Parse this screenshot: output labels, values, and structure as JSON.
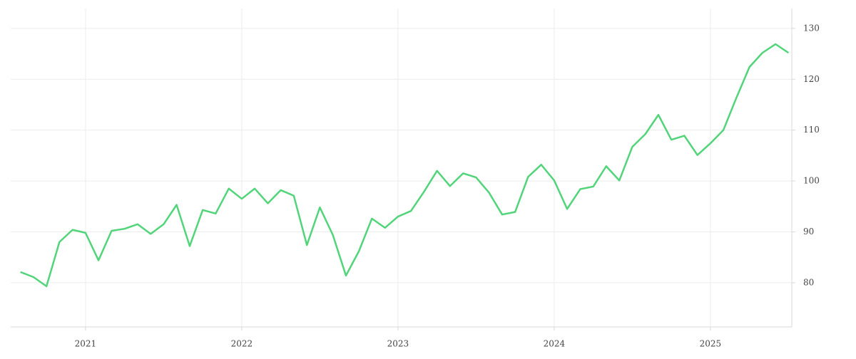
{
  "chart_data": {
    "type": "line",
    "x": [
      2020.583,
      2020.667,
      2020.75,
      2020.833,
      2020.917,
      2021,
      2021.083,
      2021.167,
      2021.25,
      2021.333,
      2021.417,
      2021.5,
      2021.583,
      2021.667,
      2021.75,
      2021.833,
      2021.917,
      2022,
      2022.083,
      2022.167,
      2022.25,
      2022.333,
      2022.417,
      2022.5,
      2022.583,
      2022.667,
      2022.75,
      2022.833,
      2022.917,
      2023,
      2023.083,
      2023.167,
      2023.25,
      2023.333,
      2023.417,
      2023.5,
      2023.583,
      2023.667,
      2023.75,
      2023.833,
      2023.917,
      2024,
      2024.083,
      2024.167,
      2024.25,
      2024.333,
      2024.417,
      2024.5,
      2024.583,
      2024.667,
      2024.75,
      2024.833,
      2024.917,
      2025,
      2025.083,
      2025.167,
      2025.25,
      2025.333,
      2025.417,
      2025.5
    ],
    "series": [
      {
        "color": "#52d47a",
        "values": [
          82.1,
          81.1,
          79.3,
          88.0,
          90.4,
          89.8,
          84.4,
          90.2,
          90.6,
          91.5,
          89.6,
          91.5,
          95.3,
          87.2,
          94.3,
          93.6,
          98.5,
          96.5,
          98.5,
          95.6,
          98.2,
          97.1,
          87.4,
          94.8,
          89.4,
          81.4,
          86.2,
          92.6,
          90.8,
          93.0,
          94.1,
          97.9,
          102.0,
          99.0,
          101.5,
          100.7,
          97.7,
          93.4,
          93.9,
          100.8,
          103.2,
          100.1,
          94.5,
          98.4,
          98.9,
          102.9,
          100.1,
          106.7,
          109.2,
          113.0,
          108.1,
          108.9,
          105.1,
          107.4,
          110.0,
          116.4,
          122.4,
          125.2,
          126.9,
          125.2
        ]
      }
    ],
    "xlim": [
      2020.521,
      2025.521
    ],
    "xticks": [
      2021,
      2022,
      2023,
      2024,
      2025
    ],
    "ylim": [
      71.3,
      133.9
    ],
    "yticks": [
      80,
      90,
      100,
      110,
      120,
      130
    ],
    "grid": true
  }
}
